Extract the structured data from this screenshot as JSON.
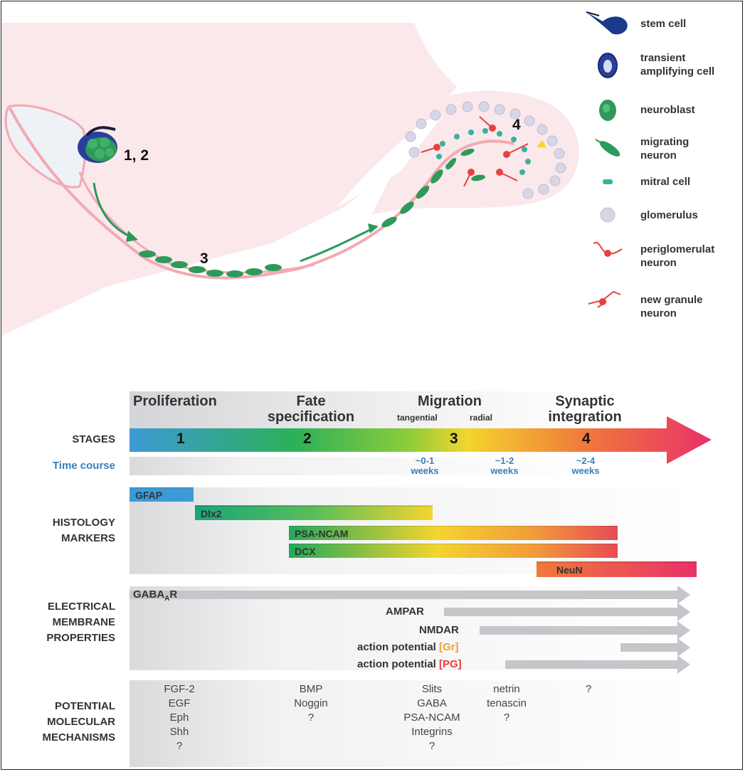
{
  "legend": [
    {
      "icon": "stem-cell-icon",
      "label": "stem cell"
    },
    {
      "icon": "transient-amplifying-cell-icon",
      "label": "transient\namplifying cell"
    },
    {
      "icon": "neuroblast-icon",
      "label": "neuroblast"
    },
    {
      "icon": "migrating-neuron-icon",
      "label": "migrating\nneuron"
    },
    {
      "icon": "mitral-cell-icon",
      "label": "mitral cell"
    },
    {
      "icon": "glomerulus-icon",
      "label": "glomerulus"
    },
    {
      "icon": "periglomerular-neuron-icon",
      "label": "periglomerulat\nneuron"
    },
    {
      "icon": "new-granule-neuron-icon",
      "label": "new granule\nneuron"
    }
  ],
  "illustration": {
    "label_12": "1, 2",
    "label_3": "3",
    "label_4": "4"
  },
  "stages": {
    "titles": {
      "proliferation": "Proliferation",
      "fate": "Fate\nspecification",
      "migration": "Migration",
      "tangential": "tangential",
      "radial": "radial",
      "synaptic": "Synaptic\nintegration"
    },
    "row_label": "STAGES",
    "numbers": [
      "1",
      "2",
      "3",
      "4"
    ],
    "time_label": "Time course",
    "time_values": [
      "~0-1\nweeks",
      "~1-2\nweeks",
      "~2-4\nweeks"
    ]
  },
  "histology": {
    "row_label": "HISTOLOGY\nMARKERS",
    "markers": [
      "GFAP",
      "Dlx2",
      "PSA-NCAM",
      "DCX",
      "NeuN"
    ]
  },
  "electrical": {
    "row_label": "ELECTRICAL\nMEMBRANE\nPROPERTIES",
    "gaba": "GABA",
    "gaba_sub": "A",
    "gaba_suffix": "R",
    "ampar": "AMPAR",
    "nmdar": "NMDAR",
    "ap1": "action potential ",
    "ap1_tag": "[Gr]",
    "ap2": "action potential ",
    "ap2_tag": "[PG]"
  },
  "molecular": {
    "row_label": "POTENTIAL\nMOLECULAR\nMECHANISMS",
    "col1": [
      "FGF-2",
      "EGF",
      "Eph",
      "Shh",
      "?"
    ],
    "col2": [
      "BMP",
      "Noggin",
      "?"
    ],
    "col3": [
      "Slits",
      "GABA",
      "PSA-NCAM",
      "Integrins",
      "?"
    ],
    "col4": [
      "netrin",
      "tenascin",
      "?"
    ],
    "col5": [
      "?"
    ]
  },
  "colors": {
    "stage_1": "#3d9ad6",
    "stage_2": "#2bb05a",
    "stage_3": "#f4d52e",
    "stage_4": "#f07a3a",
    "arrow_tip": "#e8316a",
    "path_pink": "#f2a9b3",
    "background_pink": "#fbe8ea",
    "time_blue": "#3a7fb8",
    "gr_tag": "#f0a030",
    "pg_tag": "#e84040"
  }
}
